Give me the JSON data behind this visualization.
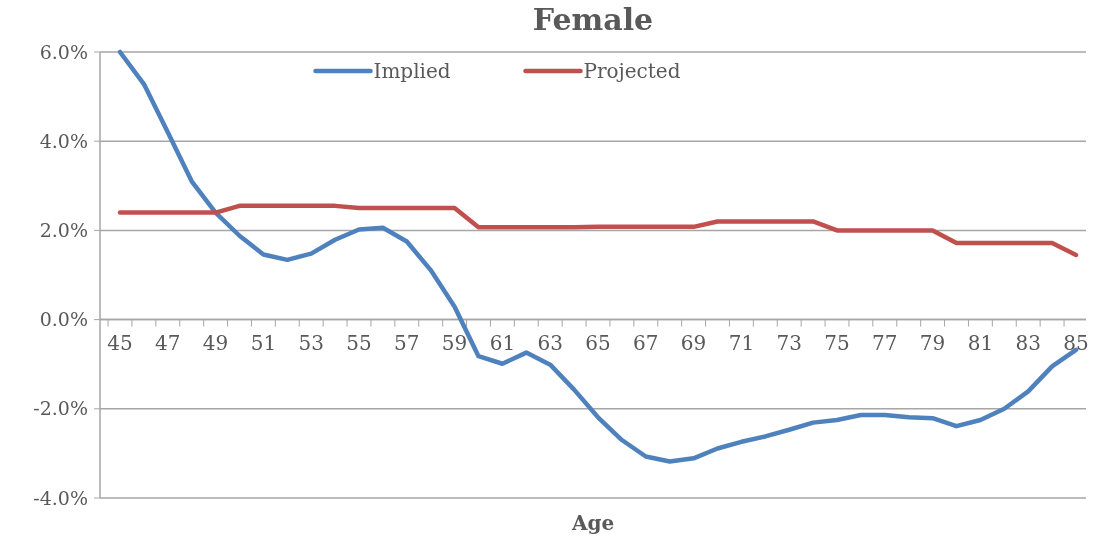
{
  "chart_data": {
    "type": "line",
    "title": "Female",
    "xlabel": "Age",
    "categories": [
      "45",
      null,
      "47",
      null,
      "49",
      null,
      "51",
      null,
      "53",
      null,
      "55",
      null,
      "57",
      null,
      "59",
      null,
      "61",
      null,
      "63",
      null,
      "65",
      null,
      "67",
      null,
      "69",
      null,
      "71",
      null,
      "73",
      null,
      "75",
      null,
      "77",
      null,
      "79",
      null,
      "81",
      null,
      "83",
      null,
      "85"
    ],
    "series": [
      {
        "name": "Implied",
        "color": "#4f81bd",
        "values": [
          6.0,
          5.28,
          4.2,
          3.1,
          2.4,
          1.88,
          1.46,
          1.34,
          1.48,
          1.79,
          2.02,
          2.06,
          1.75,
          1.11,
          0.29,
          -0.82,
          -0.99,
          -0.74,
          -1.01,
          -1.57,
          -2.19,
          -2.7,
          -3.07,
          -3.18,
          -3.11,
          -2.89,
          -2.74,
          -2.62,
          -2.47,
          -2.31,
          -2.25,
          -2.14,
          -2.14,
          -2.19,
          -2.21,
          -2.39,
          -2.25,
          -2.0,
          -1.61,
          -1.05,
          -0.68
        ]
      },
      {
        "name": "Projected",
        "color": "#c0504d",
        "values": [
          2.4,
          2.4,
          2.4,
          2.4,
          2.4,
          2.55,
          2.55,
          2.55,
          2.55,
          2.55,
          2.5,
          2.5,
          2.5,
          2.5,
          2.5,
          2.07,
          2.07,
          2.07,
          2.07,
          2.07,
          2.08,
          2.08,
          2.08,
          2.08,
          2.08,
          2.2,
          2.2,
          2.2,
          2.2,
          2.2,
          2.0,
          2.0,
          2.0,
          2.0,
          2.0,
          1.72,
          1.72,
          1.72,
          1.72,
          1.72,
          1.45
        ]
      }
    ],
    "ylim": [
      -4,
      6
    ],
    "yticks": [
      {
        "value": -4,
        "label": "-4.0%"
      },
      {
        "value": -2,
        "label": "-2.0%"
      },
      {
        "value": 0,
        "label": "0.0%"
      },
      {
        "value": 2,
        "label": "2.0%"
      },
      {
        "value": 4,
        "label": "4.0%"
      },
      {
        "value": 6,
        "label": "6.0%"
      }
    ],
    "grid": "y",
    "legend": "top",
    "marker": "none",
    "line_style": "solid"
  }
}
